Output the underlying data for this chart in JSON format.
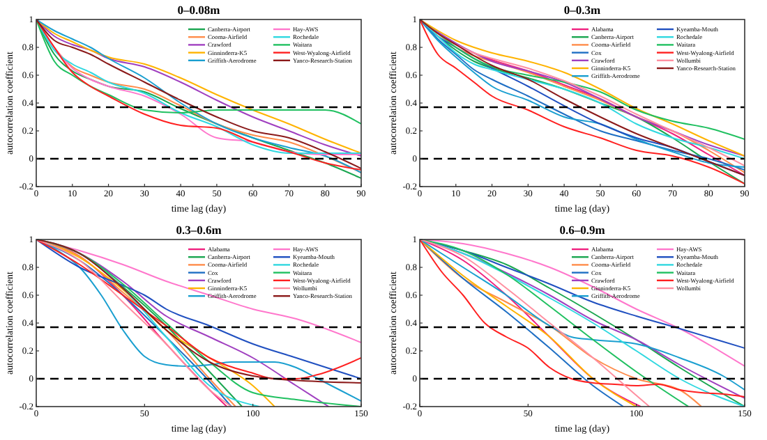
{
  "chart_data": [
    {
      "type": "line",
      "title": "0–0.08m",
      "xlabel": "time lag (day)",
      "ylabel": "autocorrelation coefficient",
      "xlim": [
        0,
        90
      ],
      "ylim": [
        -0.2,
        1
      ],
      "xticks": [
        0,
        10,
        20,
        30,
        40,
        50,
        60,
        70,
        80,
        90
      ],
      "yticks": [
        -0.2,
        0,
        0.2,
        0.4,
        0.6,
        0.8,
        1
      ],
      "legend": "top right",
      "x": [
        0,
        5,
        10,
        15,
        20,
        30,
        40,
        50,
        60,
        70,
        80,
        90
      ],
      "ref_lines": [
        {
          "axis": "y",
          "value": 0.37,
          "color": "#000000",
          "line_style": "dashed"
        },
        {
          "axis": "y",
          "value": 0,
          "color": "#000000",
          "line_style": "dashed"
        }
      ],
      "series": [
        {
          "name": "Canberra-Airport",
          "color": "#1aa650",
          "values": [
            1,
            0.75,
            0.63,
            0.57,
            0.52,
            0.48,
            0.36,
            0.25,
            0.15,
            0.06,
            -0.03,
            -0.14
          ]
        },
        {
          "name": "Cooma-Airfield",
          "color": "#ff8c4a",
          "values": [
            1,
            0.8,
            0.66,
            0.6,
            0.55,
            0.5,
            0.38,
            0.25,
            0.17,
            0.12,
            0.02,
            -0.1
          ]
        },
        {
          "name": "Crawford",
          "color": "#a040c0",
          "values": [
            1,
            0.88,
            0.82,
            0.78,
            0.72,
            0.66,
            0.55,
            0.42,
            0.3,
            0.2,
            0.1,
            0.02
          ]
        },
        {
          "name": "Ginninderra-K5",
          "color": "#ffb300",
          "values": [
            1,
            0.9,
            0.84,
            0.78,
            0.73,
            0.68,
            0.58,
            0.46,
            0.35,
            0.25,
            0.14,
            0.04
          ]
        },
        {
          "name": "Griffith-Aerodrome",
          "color": "#1a9fd0",
          "values": [
            1,
            0.92,
            0.86,
            0.8,
            0.72,
            0.58,
            0.4,
            0.25,
            0.15,
            0.08,
            0.02,
            -0.1
          ]
        },
        {
          "name": "Hay-AWS",
          "color": "#ff77cc",
          "values": [
            1,
            0.8,
            0.65,
            0.57,
            0.52,
            0.45,
            0.32,
            0.15,
            0.12,
            0.05,
            0.03,
            0.03
          ]
        },
        {
          "name": "Rochedale",
          "color": "#30d8e0",
          "values": [
            1,
            0.78,
            0.68,
            0.62,
            0.55,
            0.47,
            0.33,
            0.23,
            0.1,
            0.04,
            0.04,
            0.04
          ]
        },
        {
          "name": "Waitara",
          "color": "#20c060",
          "values": [
            1,
            0.7,
            0.6,
            0.52,
            0.46,
            0.35,
            0.33,
            0.35,
            0.35,
            0.35,
            0.35,
            0.25
          ]
        },
        {
          "name": "West-Wyalong-Airfield",
          "color": "#ff2020",
          "values": [
            1,
            0.8,
            0.62,
            0.52,
            0.45,
            0.32,
            0.24,
            0.22,
            0.12,
            0.05,
            -0.03,
            -0.08
          ]
        },
        {
          "name": "Yanco-Research-Station",
          "color": "#8b1a1a",
          "values": [
            1,
            0.85,
            0.8,
            0.75,
            0.68,
            0.55,
            0.42,
            0.3,
            0.2,
            0.15,
            0.05,
            -0.07
          ]
        }
      ]
    },
    {
      "type": "line",
      "title": "0–0.3m",
      "xlabel": "time lag (day)",
      "ylabel": "autocorrelation coefficient",
      "xlim": [
        0,
        90
      ],
      "ylim": [
        -0.2,
        1
      ],
      "xticks": [
        0,
        10,
        20,
        30,
        40,
        50,
        60,
        70,
        80,
        90
      ],
      "yticks": [
        -0.2,
        0,
        0.2,
        0.4,
        0.6,
        0.8,
        1
      ],
      "legend": "top right",
      "x": [
        0,
        5,
        10,
        15,
        20,
        30,
        40,
        50,
        60,
        70,
        80,
        90
      ],
      "ref_lines": [
        {
          "axis": "y",
          "value": 0.37,
          "color": "#000000",
          "line_style": "dashed"
        },
        {
          "axis": "y",
          "value": 0,
          "color": "#000000",
          "line_style": "dashed"
        }
      ],
      "series": [
        {
          "name": "Alabama",
          "color": "#f0207f",
          "values": [
            1,
            0.9,
            0.82,
            0.76,
            0.71,
            0.63,
            0.53,
            0.43,
            0.3,
            0.18,
            0.03,
            -0.12
          ]
        },
        {
          "name": "Canberra-Airport",
          "color": "#1aa650",
          "values": [
            1,
            0.88,
            0.78,
            0.7,
            0.65,
            0.58,
            0.5,
            0.4,
            0.3,
            0.15,
            -0.02,
            -0.18
          ]
        },
        {
          "name": "Cooma-Airfield",
          "color": "#ff8c4a",
          "values": [
            1,
            0.9,
            0.8,
            0.74,
            0.7,
            0.62,
            0.52,
            0.42,
            0.3,
            0.2,
            0.06,
            -0.1
          ]
        },
        {
          "name": "Cox",
          "color": "#1f6fc4",
          "values": [
            1,
            0.86,
            0.75,
            0.64,
            0.57,
            0.45,
            0.32,
            0.2,
            0.13,
            0.06,
            0,
            -0.08
          ]
        },
        {
          "name": "Crawford",
          "color": "#a040c0",
          "values": [
            1,
            0.91,
            0.83,
            0.76,
            0.7,
            0.63,
            0.55,
            0.43,
            0.3,
            0.2,
            0.1,
            0.02
          ]
        },
        {
          "name": "Ginninderra-K5",
          "color": "#ffb300",
          "values": [
            1,
            0.92,
            0.85,
            0.8,
            0.76,
            0.7,
            0.62,
            0.5,
            0.36,
            0.25,
            0.13,
            0.02
          ]
        },
        {
          "name": "Griffith-Aerodrome",
          "color": "#1a9fd0",
          "values": [
            1,
            0.85,
            0.73,
            0.62,
            0.52,
            0.42,
            0.3,
            0.25,
            0.14,
            0.05,
            -0.03,
            -0.06
          ]
        },
        {
          "name": "Kyeamba-Mouth",
          "color": "#2050c0",
          "values": [
            1,
            0.88,
            0.8,
            0.72,
            0.65,
            0.52,
            0.38,
            0.25,
            0.15,
            0.08,
            -0.02,
            -0.12
          ]
        },
        {
          "name": "Rochedale",
          "color": "#30d8e0",
          "values": [
            1,
            0.88,
            0.76,
            0.68,
            0.64,
            0.57,
            0.5,
            0.4,
            0.25,
            0.15,
            0.08,
            0
          ]
        },
        {
          "name": "Waitara",
          "color": "#20c060",
          "values": [
            1,
            0.9,
            0.8,
            0.72,
            0.66,
            0.6,
            0.55,
            0.48,
            0.35,
            0.27,
            0.22,
            0.14
          ]
        },
        {
          "name": "West-Wyalong-Airfield",
          "color": "#ff2020",
          "values": [
            1,
            0.75,
            0.65,
            0.55,
            0.45,
            0.35,
            0.23,
            0.15,
            0.06,
            0.02,
            -0.06,
            -0.18
          ]
        },
        {
          "name": "Wollumbi",
          "color": "#ff8fa0",
          "values": [
            1,
            0.9,
            0.82,
            0.76,
            0.72,
            0.65,
            0.56,
            0.45,
            0.32,
            0.2,
            0.08,
            -0.05
          ]
        },
        {
          "name": "Yanco-Research-Station",
          "color": "#8b1a1a",
          "values": [
            1,
            0.9,
            0.82,
            0.74,
            0.67,
            0.57,
            0.43,
            0.3,
            0.18,
            0.08,
            -0.02,
            -0.12
          ]
        }
      ]
    },
    {
      "type": "line",
      "title": "0.3–0.6m",
      "xlabel": "time lag (day)",
      "ylabel": "autocorrelation coefficient",
      "xlim": [
        0,
        150
      ],
      "ylim": [
        -0.2,
        1
      ],
      "xticks": [
        0,
        50,
        100,
        150
      ],
      "yticks": [
        -0.2,
        0,
        0.2,
        0.4,
        0.6,
        0.8,
        1
      ],
      "legend": "top right",
      "ref_lines": [
        {
          "axis": "y",
          "value": 0.37,
          "color": "#000000",
          "line_style": "dashed"
        },
        {
          "axis": "y",
          "value": 0,
          "color": "#000000",
          "line_style": "dashed"
        }
      ],
      "series": [
        {
          "name": "Alabama",
          "color": "#f0207f",
          "x": [
            0,
            20,
            40,
            60,
            80,
            88
          ],
          "values": [
            1,
            0.88,
            0.6,
            0.25,
            -0.08,
            -0.2
          ]
        },
        {
          "name": "Canberra-Airport",
          "color": "#1aa650",
          "x": [
            0,
            20,
            40,
            60,
            80,
            95
          ],
          "values": [
            1,
            0.9,
            0.66,
            0.38,
            0.05,
            -0.2
          ]
        },
        {
          "name": "Cooma-Airfield",
          "color": "#ff8c4a",
          "x": [
            0,
            20,
            40,
            60,
            80,
            92
          ],
          "values": [
            1,
            0.88,
            0.62,
            0.35,
            0,
            -0.2
          ]
        },
        {
          "name": "Cox",
          "color": "#1f6fc4",
          "x": [
            0,
            20,
            40,
            60,
            80,
            90
          ],
          "values": [
            1,
            0.85,
            0.6,
            0.3,
            -0.02,
            -0.2
          ]
        },
        {
          "name": "Crawford",
          "color": "#a040c0",
          "x": [
            0,
            20,
            40,
            60,
            80,
            100,
            120,
            135
          ],
          "values": [
            1,
            0.9,
            0.7,
            0.45,
            0.3,
            0.15,
            -0.05,
            -0.2
          ]
        },
        {
          "name": "Ginninderra-K5",
          "color": "#ffb300",
          "x": [
            0,
            20,
            40,
            60,
            80,
            100,
            110
          ],
          "values": [
            1,
            0.87,
            0.64,
            0.35,
            0.15,
            -0.05,
            -0.2
          ]
        },
        {
          "name": "Griffith-Aerodrome",
          "color": "#1a9fd0",
          "x": [
            0,
            10,
            20,
            30,
            40,
            50,
            60,
            70,
            80,
            90,
            100,
            110,
            120,
            130,
            140,
            150
          ],
          "values": [
            1,
            0.92,
            0.8,
            0.6,
            0.35,
            0.16,
            0.1,
            0.09,
            0.1,
            0.12,
            0.12,
            0.12,
            0.08,
            0,
            -0.08,
            -0.16
          ]
        },
        {
          "name": "Hay-AWS",
          "color": "#ff77cc",
          "x": [
            0,
            20,
            40,
            60,
            80,
            100,
            120,
            150
          ],
          "values": [
            1,
            0.92,
            0.82,
            0.7,
            0.6,
            0.5,
            0.43,
            0.26
          ]
        },
        {
          "name": "Kyeamba-Mouth",
          "color": "#2050c0",
          "x": [
            0,
            20,
            40,
            50,
            60,
            80,
            100,
            120,
            150
          ],
          "values": [
            1,
            0.8,
            0.67,
            0.6,
            0.5,
            0.38,
            0.25,
            0.15,
            0
          ]
        },
        {
          "name": "Rochedale",
          "color": "#30d8e0",
          "x": [
            0,
            20,
            40,
            60,
            80,
            103
          ],
          "values": [
            1,
            0.9,
            0.65,
            0.3,
            -0.05,
            -0.2
          ]
        },
        {
          "name": "Waitara",
          "color": "#20c060",
          "x": [
            0,
            20,
            40,
            60,
            80,
            100,
            120,
            150
          ],
          "values": [
            1,
            0.9,
            0.68,
            0.4,
            0.12,
            -0.1,
            -0.15,
            -0.2
          ]
        },
        {
          "name": "West-Wyalong-Airfield",
          "color": "#ff2020",
          "x": [
            0,
            20,
            40,
            60,
            80,
            100,
            110,
            120,
            130,
            150
          ],
          "values": [
            1,
            0.82,
            0.6,
            0.38,
            0.15,
            0.04,
            0,
            0,
            0.03,
            0.15
          ]
        },
        {
          "name": "Wollumbi",
          "color": "#ff8fa0",
          "x": [
            0,
            20,
            40,
            60,
            80,
            90
          ],
          "values": [
            1,
            0.85,
            0.55,
            0.25,
            -0.08,
            -0.2
          ]
        },
        {
          "name": "Yanco-Research-Station",
          "color": "#8b1a1a",
          "x": [
            0,
            20,
            40,
            60,
            80,
            100,
            110,
            130,
            150
          ],
          "values": [
            1,
            0.9,
            0.65,
            0.35,
            0.12,
            0.02,
            0,
            -0.02,
            -0.03
          ]
        }
      ]
    },
    {
      "type": "line",
      "title": "0.6–0.9m",
      "xlabel": "time lag (day)",
      "ylabel": "autocorrelation coefficient",
      "xlim": [
        0,
        150
      ],
      "ylim": [
        -0.2,
        1
      ],
      "xticks": [
        0,
        50,
        100,
        150
      ],
      "yticks": [
        -0.2,
        0,
        0.2,
        0.4,
        0.6,
        0.8,
        1
      ],
      "legend": "top right",
      "ref_lines": [
        {
          "axis": "y",
          "value": 0.37,
          "color": "#000000",
          "line_style": "dashed"
        },
        {
          "axis": "y",
          "value": 0,
          "color": "#000000",
          "line_style": "dashed"
        }
      ],
      "series": [
        {
          "name": "Alabama",
          "color": "#f0207f",
          "x": [
            0,
            20,
            40,
            60,
            80,
            102
          ],
          "values": [
            1,
            0.85,
            0.6,
            0.3,
            0,
            -0.2
          ]
        },
        {
          "name": "Canberra-Airport",
          "color": "#1aa650",
          "x": [
            0,
            20,
            40,
            60,
            80,
            100,
            120,
            150
          ],
          "values": [
            1,
            0.92,
            0.82,
            0.65,
            0.47,
            0.28,
            0.08,
            -0.2
          ]
        },
        {
          "name": "Cooma-Airfield",
          "color": "#ff8c4a",
          "x": [
            0,
            20,
            40,
            60,
            80,
            100,
            120,
            130
          ],
          "values": [
            1,
            0.72,
            0.55,
            0.38,
            0.15,
            0,
            -0.08,
            -0.2
          ]
        },
        {
          "name": "Cox",
          "color": "#1f6fc4",
          "x": [
            0,
            20,
            40,
            60,
            80,
            94
          ],
          "values": [
            1,
            0.72,
            0.48,
            0.22,
            -0.05,
            -0.2
          ]
        },
        {
          "name": "Crawford",
          "color": "#a040c0",
          "x": [
            0,
            20,
            40,
            60,
            80,
            100,
            120,
            150
          ],
          "values": [
            1,
            0.9,
            0.76,
            0.6,
            0.42,
            0.28,
            0.1,
            -0.14
          ]
        },
        {
          "name": "Ginninderra-K5",
          "color": "#ffb300",
          "x": [
            0,
            20,
            40,
            60,
            80,
            100
          ],
          "values": [
            1,
            0.74,
            0.52,
            0.3,
            0,
            -0.2
          ]
        },
        {
          "name": "Griffith-Aerodrome",
          "color": "#1a9fd0",
          "x": [
            0,
            20,
            40,
            60,
            70,
            80,
            100,
            120,
            140,
            150
          ],
          "values": [
            1,
            0.8,
            0.6,
            0.38,
            0.3,
            0.28,
            0.25,
            0.15,
            0.02,
            -0.08
          ]
        },
        {
          "name": "Hay-AWS",
          "color": "#ff77cc",
          "x": [
            0,
            20,
            40,
            60,
            80,
            100,
            120,
            150
          ],
          "values": [
            1,
            0.97,
            0.9,
            0.8,
            0.66,
            0.5,
            0.36,
            0.09
          ]
        },
        {
          "name": "Kyeamba-Mouth",
          "color": "#2050c0",
          "x": [
            0,
            20,
            40,
            60,
            80,
            100,
            120,
            150
          ],
          "values": [
            1,
            0.92,
            0.8,
            0.68,
            0.55,
            0.45,
            0.36,
            0.22
          ]
        },
        {
          "name": "Rochedale",
          "color": "#30d8e0",
          "x": [
            0,
            20,
            40,
            60,
            80,
            100,
            120,
            150
          ],
          "values": [
            1,
            0.9,
            0.75,
            0.58,
            0.4,
            0.2,
            0,
            -0.2
          ]
        },
        {
          "name": "Waitara",
          "color": "#20c060",
          "x": [
            0,
            20,
            40,
            60,
            80,
            100,
            124
          ],
          "values": [
            1,
            0.92,
            0.75,
            0.52,
            0.28,
            0.05,
            -0.2
          ]
        },
        {
          "name": "West-Wyalong-Airfield",
          "color": "#ff2020",
          "x": [
            0,
            10,
            20,
            30,
            40,
            50,
            60,
            70,
            80,
            90,
            100,
            110,
            120,
            130,
            140,
            150
          ],
          "values": [
            1,
            0.77,
            0.6,
            0.4,
            0.3,
            0.22,
            0.08,
            0,
            -0.03,
            -0.04,
            -0.05,
            -0.04,
            -0.08,
            -0.1,
            -0.11,
            -0.13
          ]
        },
        {
          "name": "Wollumbi",
          "color": "#ff8fa0",
          "x": [
            0,
            20,
            40,
            60,
            80,
            100,
            106
          ],
          "values": [
            1,
            0.88,
            0.65,
            0.4,
            0.15,
            -0.12,
            -0.2
          ]
        }
      ]
    }
  ]
}
